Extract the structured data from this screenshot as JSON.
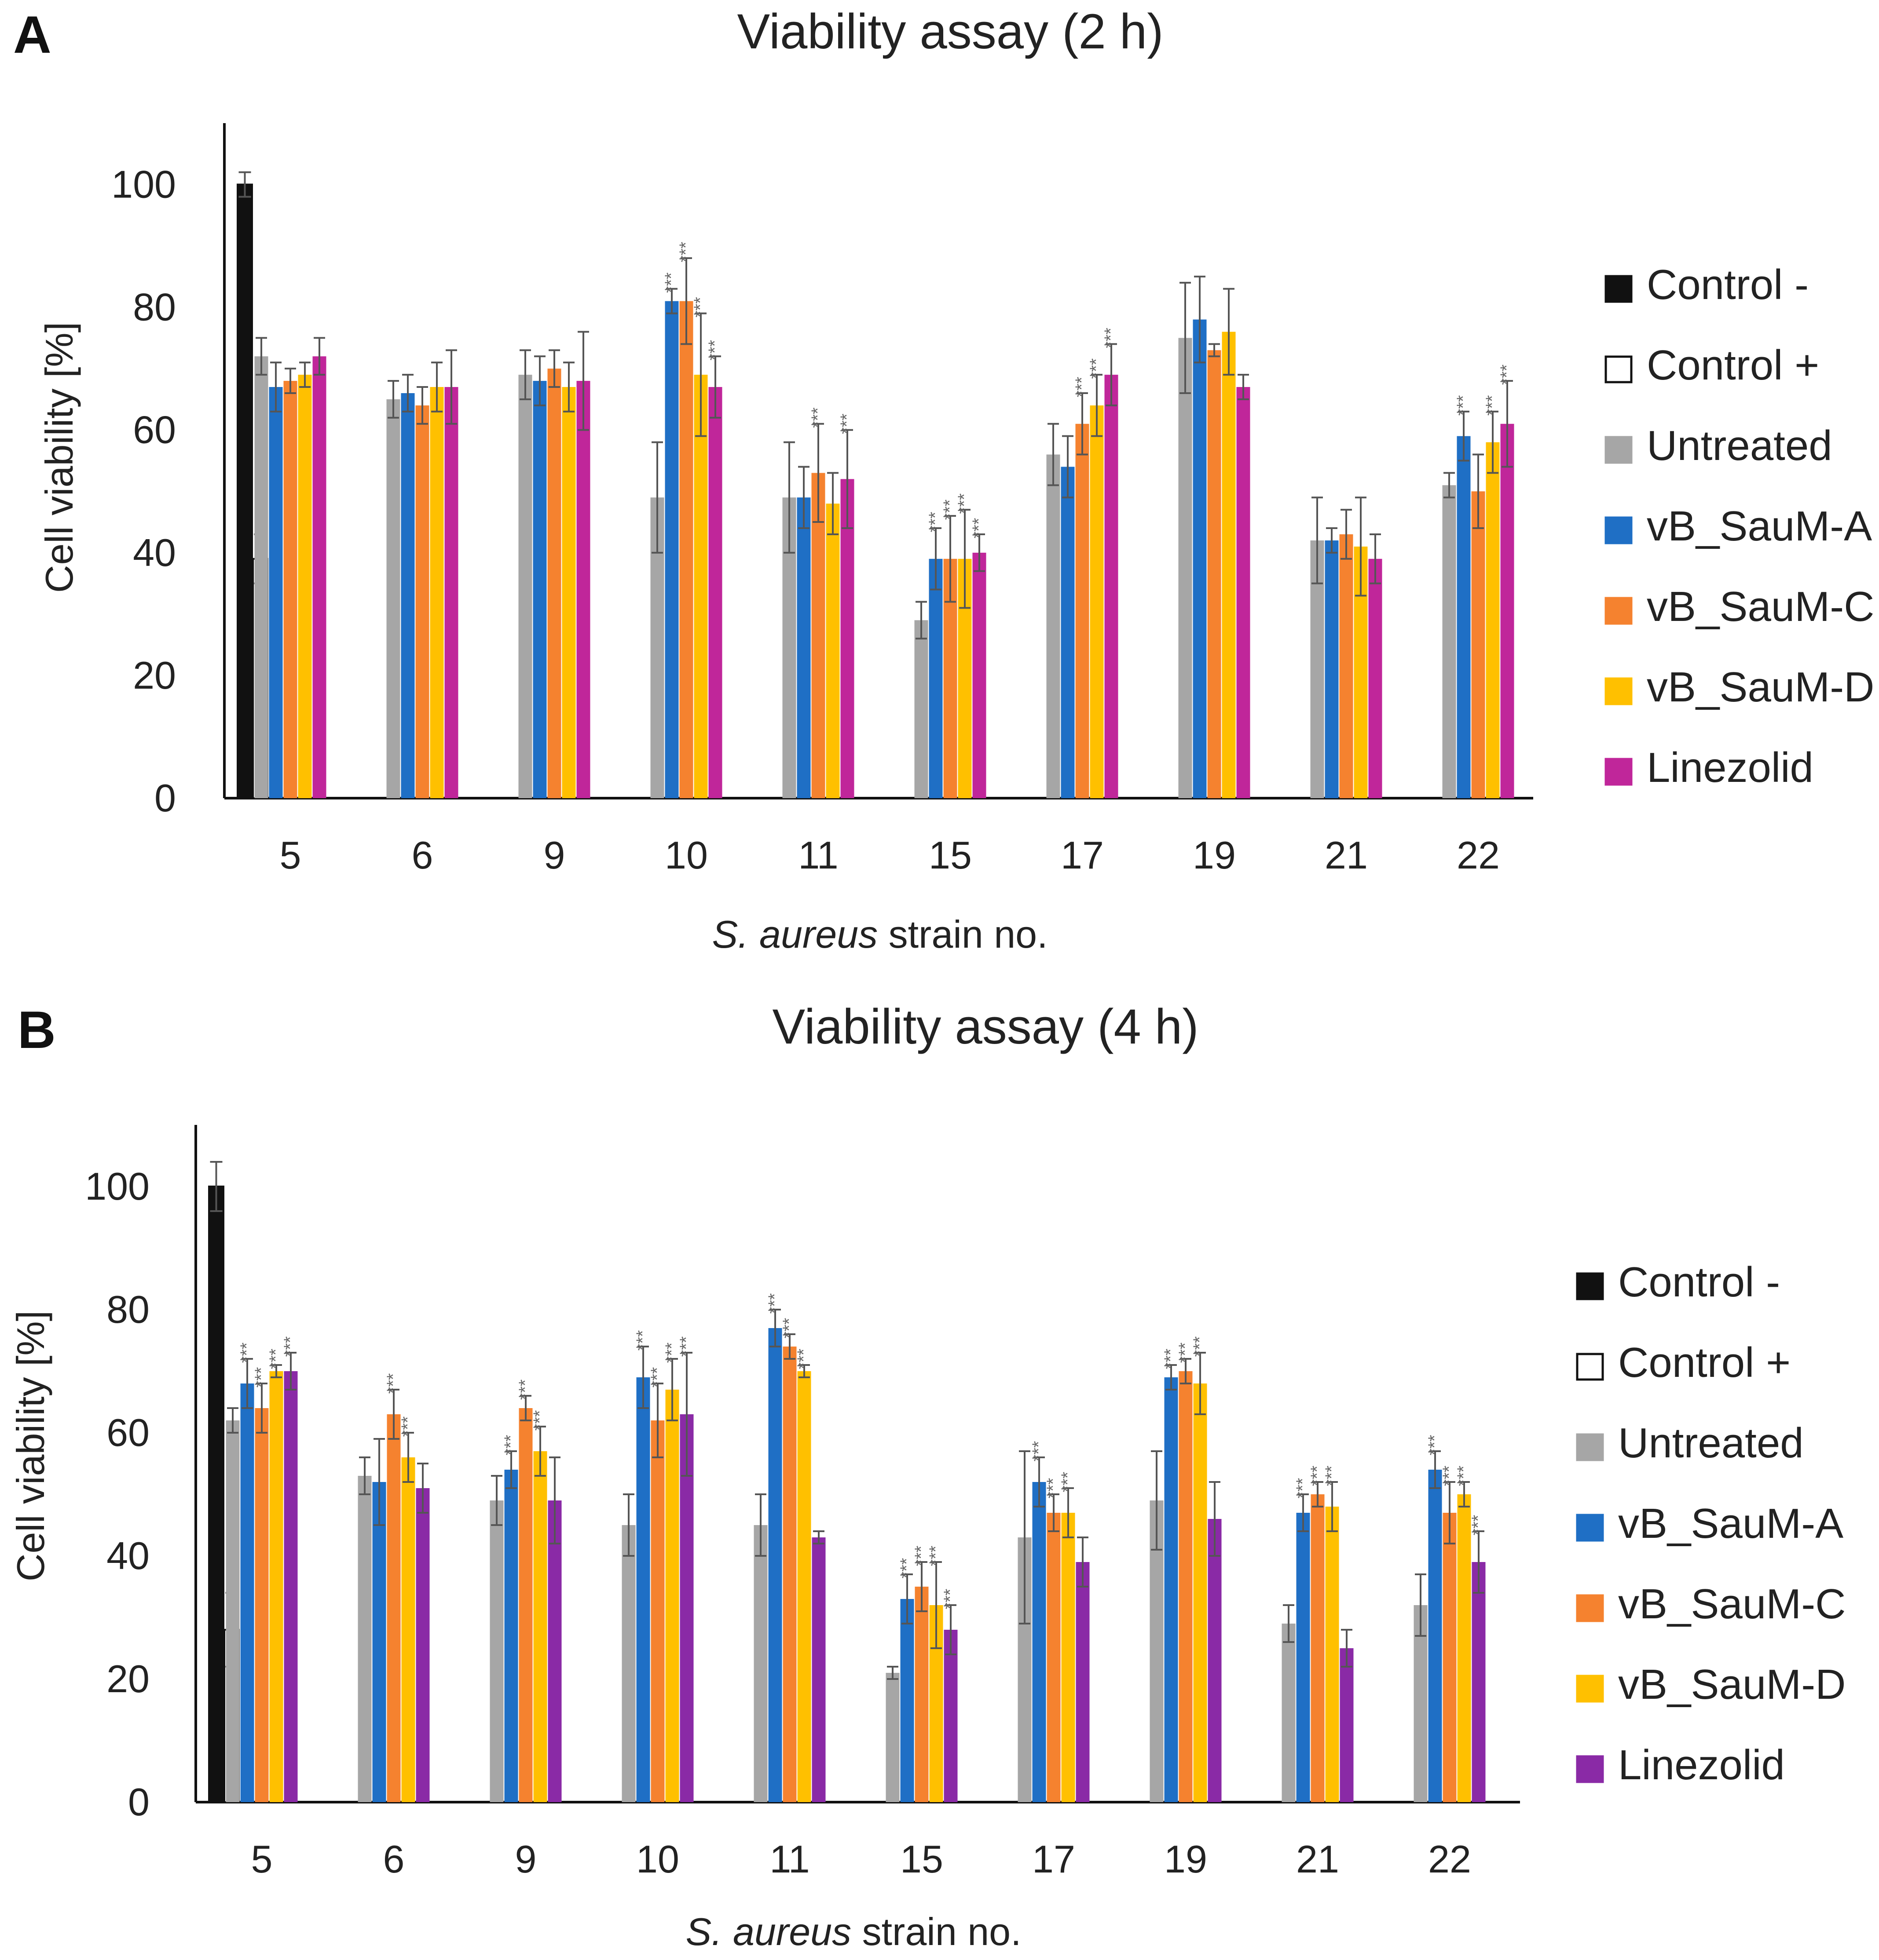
{
  "chart_data": [
    {
      "panel": "A",
      "type": "bar",
      "title": "Viability assay (2 h)",
      "xlabel_italic": "S. aureus",
      "xlabel_rest": " strain no.",
      "ylabel": "Cell viability [%]",
      "ylim": [
        0,
        110
      ],
      "yticks": [
        0,
        20,
        40,
        60,
        80,
        100
      ],
      "categories": [
        "5",
        "6",
        "9",
        "10",
        "11",
        "15",
        "17",
        "19",
        "21",
        "22"
      ],
      "controls": [
        {
          "name": "Control -",
          "value": 100,
          "err": 2,
          "color": "#111111",
          "fill": "#111111"
        },
        {
          "name": "Control +",
          "value": 39,
          "err": 4,
          "color": "#111111",
          "fill": "#ffffff"
        }
      ],
      "series": [
        {
          "name": "Untreated",
          "color": "#a6a6a6",
          "values": [
            72,
            65,
            69,
            49,
            49,
            29,
            56,
            75,
            42,
            51
          ],
          "errors": [
            3,
            3,
            4,
            9,
            9,
            3,
            5,
            9,
            7,
            2
          ],
          "stars": [
            "",
            "",
            "",
            "",
            "",
            "",
            "",
            "",
            "",
            ""
          ]
        },
        {
          "name": "vB_SauM-A",
          "color": "#1f6fc5",
          "values": [
            67,
            66,
            68,
            81,
            49,
            39,
            54,
            78,
            42,
            59
          ],
          "errors": [
            4,
            3,
            4,
            2,
            5,
            5,
            5,
            7,
            2,
            4
          ],
          "stars": [
            "",
            "",
            "",
            "***",
            "",
            "***",
            "",
            "",
            "",
            "***"
          ]
        },
        {
          "name": "vB_SauM-C",
          "color": "#f5822f",
          "values": [
            68,
            64,
            70,
            81,
            53,
            39,
            61,
            73,
            43,
            50
          ],
          "errors": [
            2,
            3,
            3,
            7,
            8,
            7,
            5,
            1,
            4,
            6
          ],
          "stars": [
            "",
            "",
            "",
            "***",
            "***",
            "***",
            "***",
            "",
            "",
            ""
          ]
        },
        {
          "name": "vB_SauM-D",
          "color": "#ffc000",
          "values": [
            69,
            67,
            67,
            69,
            48,
            39,
            64,
            76,
            41,
            58
          ],
          "errors": [
            2,
            4,
            4,
            10,
            5,
            8,
            5,
            7,
            8,
            5
          ],
          "stars": [
            "",
            "",
            "",
            "***",
            "",
            "***",
            "***",
            "",
            "",
            "***"
          ]
        },
        {
          "name": "Linezolid",
          "color": "#c0269a",
          "values": [
            72,
            67,
            68,
            67,
            52,
            40,
            69,
            67,
            39,
            61
          ],
          "errors": [
            3,
            6,
            8,
            5,
            8,
            3,
            5,
            2,
            4,
            7
          ],
          "stars": [
            "",
            "",
            "",
            "***",
            "***",
            "***",
            "***",
            "",
            "",
            "***"
          ]
        }
      ]
    },
    {
      "panel": "B",
      "type": "bar",
      "title": "Viability assay (4 h)",
      "xlabel_italic": "S. aureus",
      "xlabel_rest": " strain no.",
      "ylabel": "Cell viability [%]",
      "ylim": [
        0,
        110
      ],
      "yticks": [
        0,
        20,
        40,
        60,
        80,
        100
      ],
      "categories": [
        "5",
        "6",
        "9",
        "10",
        "11",
        "15",
        "17",
        "19",
        "21",
        "22"
      ],
      "controls": [
        {
          "name": "Control -",
          "value": 100,
          "err": 4,
          "color": "#111111",
          "fill": "#111111"
        },
        {
          "name": "Control +",
          "value": 28,
          "err": 6,
          "color": "#111111",
          "fill": "#ffffff"
        }
      ],
      "series": [
        {
          "name": "Untreated",
          "color": "#a6a6a6",
          "values": [
            62,
            53,
            49,
            45,
            45,
            21,
            43,
            49,
            29,
            32
          ],
          "errors": [
            2,
            3,
            4,
            5,
            5,
            1,
            14,
            8,
            3,
            5
          ],
          "stars": [
            "",
            "",
            "",
            "",
            "",
            "",
            "",
            "",
            "",
            ""
          ]
        },
        {
          "name": "vB_SauM-A",
          "color": "#1f6fc5",
          "values": [
            68,
            52,
            54,
            69,
            77,
            33,
            52,
            69,
            47,
            54
          ],
          "errors": [
            4,
            7,
            3,
            5,
            3,
            4,
            4,
            2,
            3,
            3
          ],
          "stars": [
            "***",
            "",
            "***",
            "***",
            "***",
            "***",
            "***",
            "***",
            "***",
            "***"
          ]
        },
        {
          "name": "vB_SauM-C",
          "color": "#f5822f",
          "values": [
            64,
            63,
            64,
            62,
            74,
            35,
            47,
            70,
            50,
            47
          ],
          "errors": [
            4,
            4,
            2,
            6,
            2,
            4,
            3,
            2,
            2,
            5
          ],
          "stars": [
            "***",
            "***",
            "***",
            "***",
            "***",
            "***",
            "***",
            "***",
            "***",
            "***"
          ]
        },
        {
          "name": "vB_SauM-D",
          "color": "#ffc000",
          "values": [
            70,
            56,
            57,
            67,
            70,
            32,
            47,
            68,
            48,
            50
          ],
          "errors": [
            1,
            4,
            4,
            5,
            1,
            7,
            4,
            5,
            4,
            2
          ],
          "stars": [
            "***",
            "***",
            "***",
            "***",
            "***",
            "***",
            "***",
            "***",
            "***",
            "***"
          ]
        },
        {
          "name": "Linezolid",
          "color": "#8a2aa6",
          "values": [
            70,
            51,
            49,
            63,
            43,
            28,
            39,
            46,
            25,
            39
          ],
          "errors": [
            3,
            4,
            7,
            10,
            1,
            4,
            4,
            6,
            3,
            5
          ],
          "stars": [
            "***",
            "",
            "",
            "***",
            "",
            "***",
            "",
            "",
            "",
            "***"
          ]
        }
      ]
    }
  ]
}
